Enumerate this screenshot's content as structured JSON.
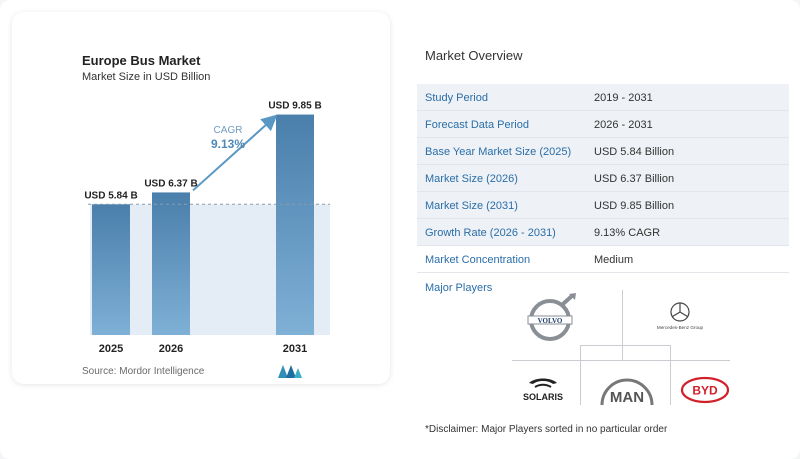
{
  "chart_card": {
    "title": "Europe Bus Market",
    "subtitle": "Market Size in USD Billion",
    "source": "Source: Mordor Intelligence"
  },
  "chart_data": {
    "type": "bar",
    "title": "Europe Bus Market",
    "subtitle": "Market Size in USD Billion",
    "categories": [
      "2025",
      "2026",
      "2031"
    ],
    "values": [
      5.84,
      6.37,
      9.85
    ],
    "data_labels": [
      "USD 5.84 B",
      "USD 6.37 B",
      "USD 9.85 B"
    ],
    "cagr_label": "CAGR",
    "cagr_value": "9.13%",
    "ylim": [
      0,
      10.5
    ],
    "grid": false
  },
  "overview": {
    "title": "Market Overview",
    "rows": [
      {
        "label": "Study Period",
        "value": "2019 - 2031"
      },
      {
        "label": "Forecast Data Period",
        "value": "2026 - 2031"
      },
      {
        "label": "Base Year Market Size (2025)",
        "value": "USD 5.84 Billion"
      },
      {
        "label": "Market Size (2026)",
        "value": "USD 6.37 Billion"
      },
      {
        "label": "Market Size (2031)",
        "value": "USD 9.85 Billion"
      },
      {
        "label": "Growth Rate (2026 - 2031)",
        "value": "9.13% CAGR"
      },
      {
        "label": "Market Concentration",
        "value": "Medium"
      }
    ],
    "players_title": "Major Players",
    "players": [
      {
        "name": "VOLVO",
        "icon": "volvo-logo"
      },
      {
        "name": "Mercedes-Benz Group",
        "icon": "mercedes-logo"
      },
      {
        "name": "SOLARIS",
        "icon": "solaris-logo"
      },
      {
        "name": "MAN",
        "icon": "man-logo"
      },
      {
        "name": "BYD",
        "icon": "byd-logo"
      }
    ],
    "disclaimer": "*Disclaimer: Major Players sorted in no particular order"
  },
  "colors": {
    "bar_light": "#6e9fc8",
    "bar_dark": "#4a7fab",
    "shade": "#dde8f2",
    "accent": "#2a6ea8",
    "arrow": "#5b97c4"
  }
}
